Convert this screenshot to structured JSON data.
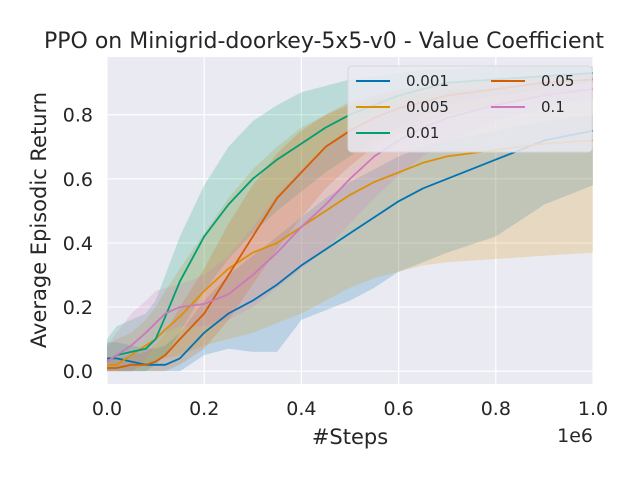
{
  "chart_data": {
    "type": "line",
    "title": "PPO on Minigrid-doorkey-5x5-v0 - Value Coefficient",
    "xlabel": "#Steps",
    "ylabel": "Average Episodic Return",
    "x_scale_label": "1e6",
    "xlim": [
      0.0,
      1.0
    ],
    "ylim": [
      -0.04,
      0.98
    ],
    "x_ticks": [
      "0.0",
      "0.2",
      "0.4",
      "0.6",
      "0.8",
      "1.0"
    ],
    "y_ticks": [
      "0.0",
      "0.2",
      "0.4",
      "0.6",
      "0.8"
    ],
    "grid": true,
    "legend_position": "top-right",
    "legend_columns": 2,
    "x": [
      0.0,
      0.02,
      0.05,
      0.08,
      0.1,
      0.12,
      0.15,
      0.2,
      0.25,
      0.3,
      0.35,
      0.4,
      0.45,
      0.5,
      0.55,
      0.6,
      0.65,
      0.7,
      0.8,
      0.9,
      1.0
    ],
    "series": [
      {
        "name": "0.001",
        "color": "#0173b2",
        "values": [
          0.04,
          0.04,
          0.03,
          0.02,
          0.02,
          0.02,
          0.04,
          0.12,
          0.18,
          0.22,
          0.27,
          0.33,
          0.38,
          0.43,
          0.48,
          0.53,
          0.57,
          0.6,
          0.66,
          0.72,
          0.75
        ],
        "upper": [
          0.09,
          0.09,
          0.08,
          0.07,
          0.07,
          0.08,
          0.12,
          0.22,
          0.3,
          0.36,
          0.42,
          0.48,
          0.54,
          0.59,
          0.63,
          0.67,
          0.7,
          0.72,
          0.75,
          0.78,
          0.8
        ],
        "lower": [
          0.0,
          0.0,
          0.0,
          0.0,
          0.0,
          0.0,
          0.0,
          0.05,
          0.07,
          0.06,
          0.06,
          0.16,
          0.19,
          0.22,
          0.26,
          0.31,
          0.34,
          0.37,
          0.42,
          0.52,
          0.58
        ]
      },
      {
        "name": "0.005",
        "color": "#de8f05",
        "values": [
          0.02,
          0.02,
          0.05,
          0.08,
          0.1,
          0.13,
          0.17,
          0.25,
          0.32,
          0.37,
          0.4,
          0.45,
          0.5,
          0.55,
          0.59,
          0.62,
          0.65,
          0.67,
          0.69,
          0.71,
          0.72
        ],
        "upper": [
          0.08,
          0.1,
          0.12,
          0.16,
          0.2,
          0.25,
          0.32,
          0.43,
          0.54,
          0.63,
          0.7,
          0.76,
          0.8,
          0.83,
          0.85,
          0.86,
          0.87,
          0.88,
          0.88,
          0.88,
          0.88
        ],
        "lower": [
          0.0,
          0.0,
          0.0,
          0.02,
          0.03,
          0.04,
          0.05,
          0.08,
          0.1,
          0.12,
          0.15,
          0.18,
          0.22,
          0.26,
          0.29,
          0.31,
          0.33,
          0.34,
          0.35,
          0.36,
          0.37
        ]
      },
      {
        "name": "0.01",
        "color": "#029e73",
        "values": [
          0.03,
          0.05,
          0.06,
          0.07,
          0.1,
          0.17,
          0.28,
          0.42,
          0.52,
          0.6,
          0.66,
          0.71,
          0.76,
          0.8,
          0.83,
          0.86,
          0.88,
          0.9,
          0.91,
          0.92,
          0.93
        ],
        "upper": [
          0.1,
          0.14,
          0.16,
          0.18,
          0.22,
          0.3,
          0.42,
          0.58,
          0.7,
          0.78,
          0.83,
          0.87,
          0.89,
          0.91,
          0.92,
          0.93,
          0.94,
          0.94,
          0.95,
          0.95,
          0.95
        ],
        "lower": [
          0.0,
          0.0,
          0.0,
          0.0,
          0.02,
          0.05,
          0.12,
          0.25,
          0.35,
          0.43,
          0.5,
          0.56,
          0.62,
          0.67,
          0.72,
          0.76,
          0.8,
          0.83,
          0.86,
          0.88,
          0.9
        ]
      },
      {
        "name": "0.05",
        "color": "#d55e00",
        "values": [
          0.01,
          0.01,
          0.02,
          0.02,
          0.03,
          0.05,
          0.1,
          0.18,
          0.3,
          0.42,
          0.54,
          0.62,
          0.7,
          0.75,
          0.79,
          0.82,
          0.84,
          0.86,
          0.88,
          0.9,
          0.91
        ],
        "upper": [
          0.04,
          0.04,
          0.05,
          0.06,
          0.08,
          0.12,
          0.2,
          0.32,
          0.46,
          0.58,
          0.68,
          0.75,
          0.8,
          0.84,
          0.86,
          0.88,
          0.89,
          0.9,
          0.91,
          0.92,
          0.93
        ],
        "lower": [
          0.0,
          0.0,
          0.0,
          0.0,
          0.0,
          0.0,
          0.02,
          0.07,
          0.16,
          0.27,
          0.38,
          0.48,
          0.57,
          0.64,
          0.7,
          0.74,
          0.77,
          0.8,
          0.83,
          0.86,
          0.88
        ]
      },
      {
        "name": "0.1",
        "color": "#cc78bc",
        "values": [
          0.03,
          0.05,
          0.08,
          0.12,
          0.15,
          0.18,
          0.2,
          0.21,
          0.24,
          0.3,
          0.37,
          0.45,
          0.52,
          0.6,
          0.67,
          0.72,
          0.76,
          0.79,
          0.83,
          0.86,
          0.88
        ],
        "upper": [
          0.08,
          0.12,
          0.18,
          0.22,
          0.25,
          0.26,
          0.27,
          0.3,
          0.36,
          0.45,
          0.55,
          0.63,
          0.7,
          0.76,
          0.8,
          0.83,
          0.85,
          0.87,
          0.89,
          0.9,
          0.91
        ],
        "lower": [
          0.0,
          0.0,
          0.0,
          0.04,
          0.08,
          0.12,
          0.14,
          0.14,
          0.16,
          0.2,
          0.26,
          0.32,
          0.38,
          0.46,
          0.54,
          0.61,
          0.67,
          0.72,
          0.78,
          0.82,
          0.85
        ]
      }
    ]
  }
}
